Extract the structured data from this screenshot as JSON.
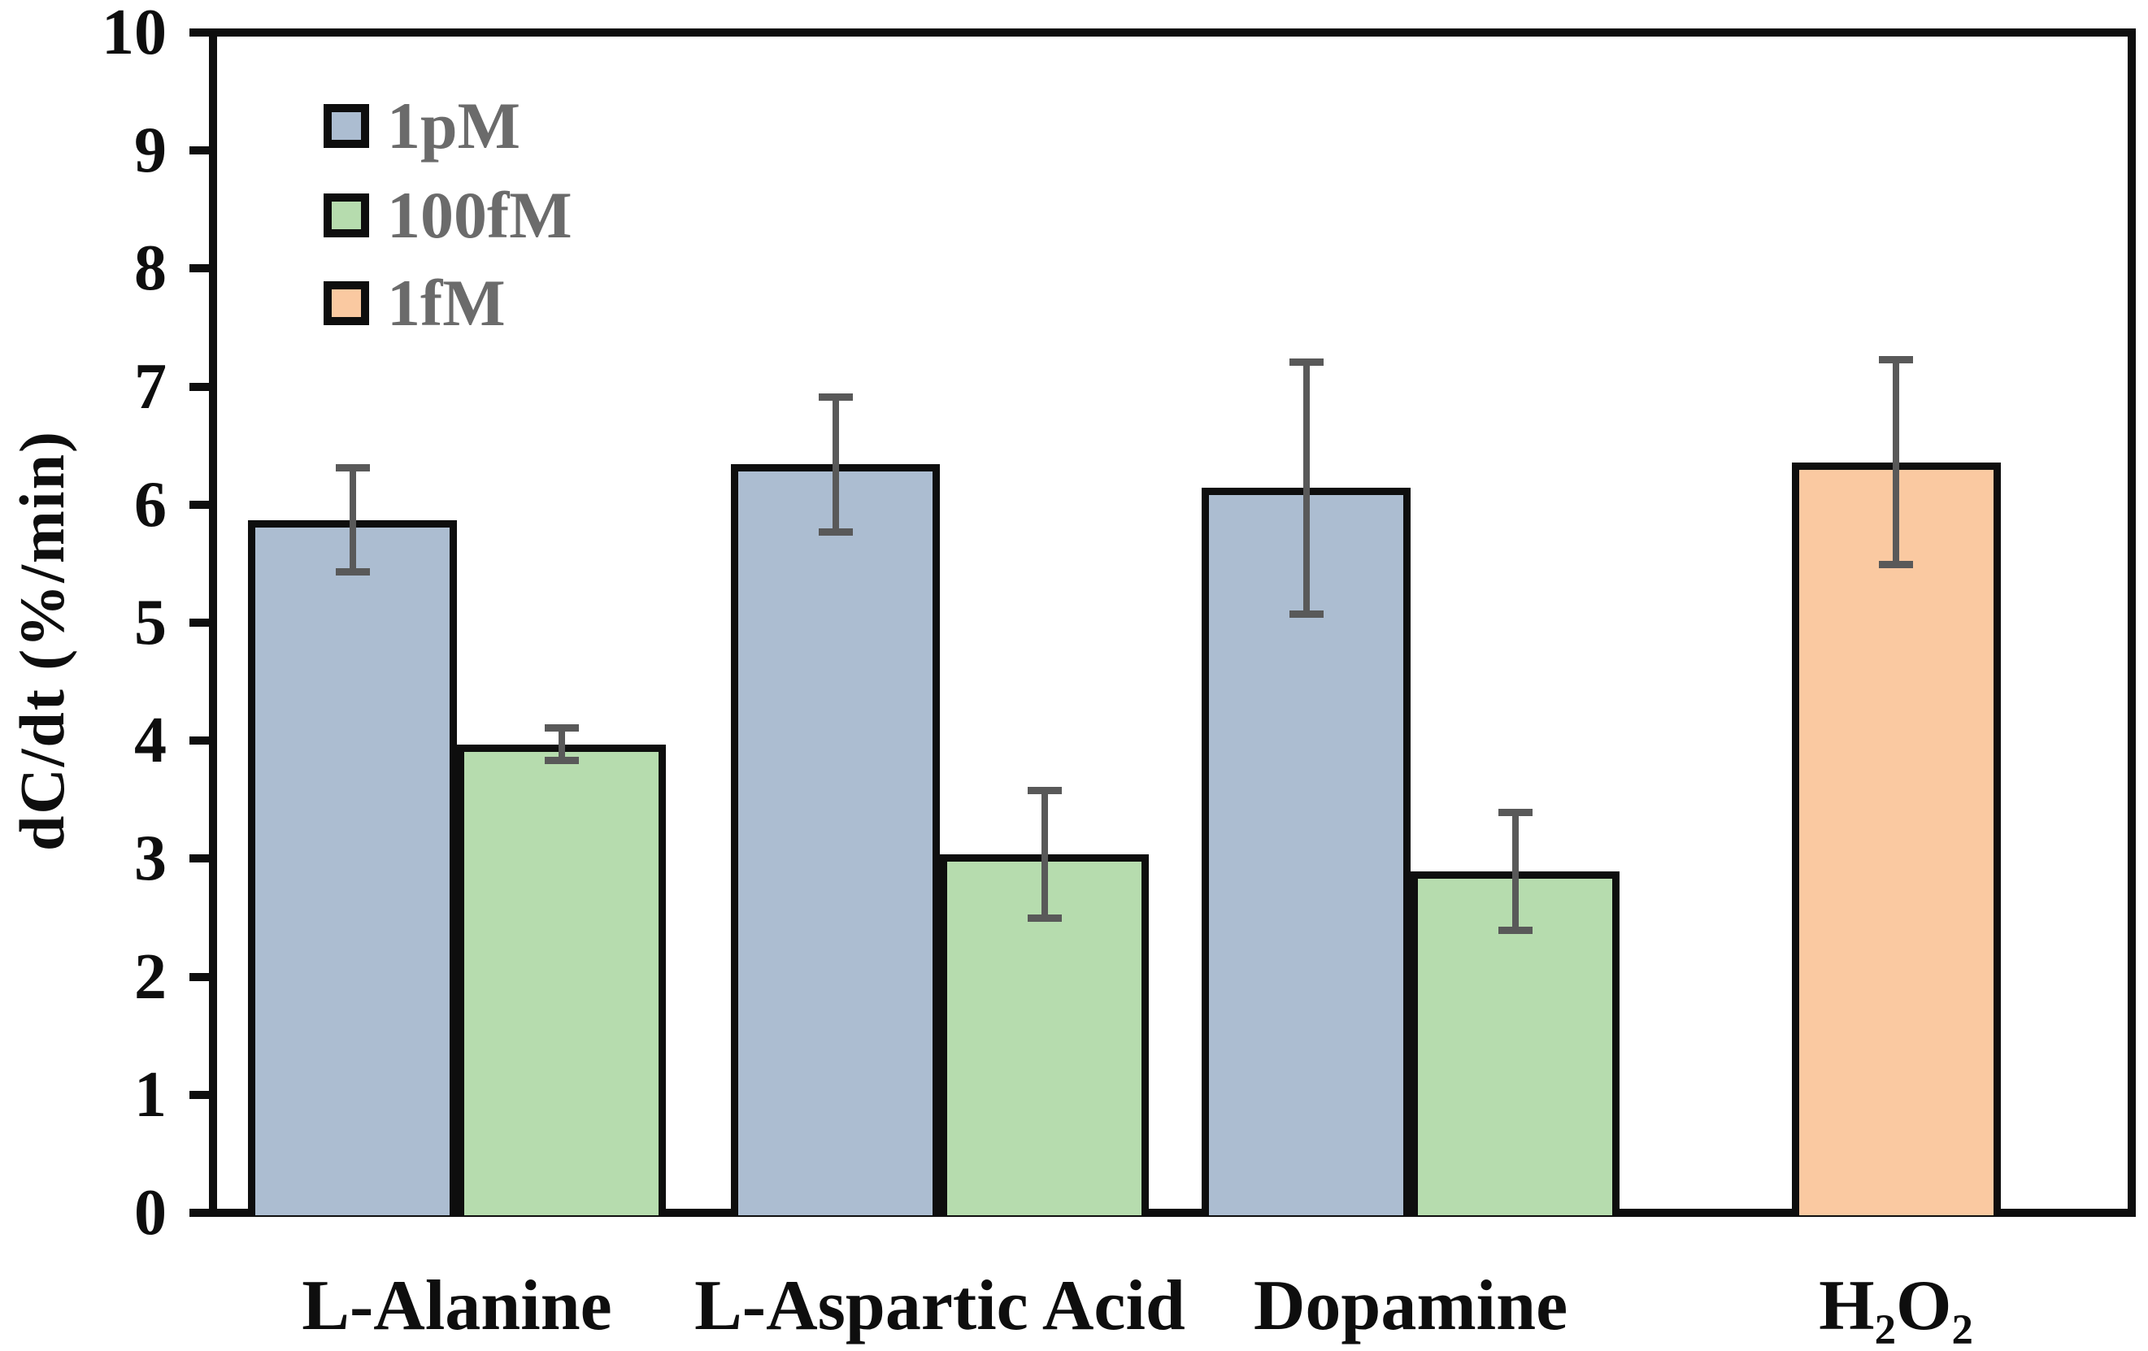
{
  "figure": {
    "background_color": "#ffffff",
    "frame_color": "#0e0e0e"
  },
  "chart_data": {
    "type": "bar",
    "title": "",
    "xlabel": "",
    "ylabel": "dC/dt (%/min)",
    "ylim": [
      0,
      10
    ],
    "yticks": [
      0,
      1,
      2,
      3,
      4,
      5,
      6,
      7,
      8,
      9,
      10
    ],
    "grid": false,
    "legend_position": "top-left",
    "error_bar_color": "#595959",
    "categories": [
      "L-Alanine",
      "L-Aspartic Acid",
      "Dopamine",
      "H₂O₂"
    ],
    "series": [
      {
        "name": "1pM",
        "color": "#ACBDD1",
        "values": [
          5.87,
          6.34,
          6.14,
          null
        ],
        "errors": [
          0.44,
          0.57,
          1.07,
          null
        ]
      },
      {
        "name": "100fM",
        "color": "#B6DCAE",
        "values": [
          3.97,
          3.04,
          2.89,
          null
        ],
        "errors": [
          0.14,
          0.54,
          0.5,
          null
        ]
      },
      {
        "name": "1fM",
        "color": "#FAC9A1",
        "values": [
          null,
          null,
          null,
          6.36
        ],
        "errors": [
          null,
          null,
          null,
          0.87
        ]
      }
    ]
  }
}
